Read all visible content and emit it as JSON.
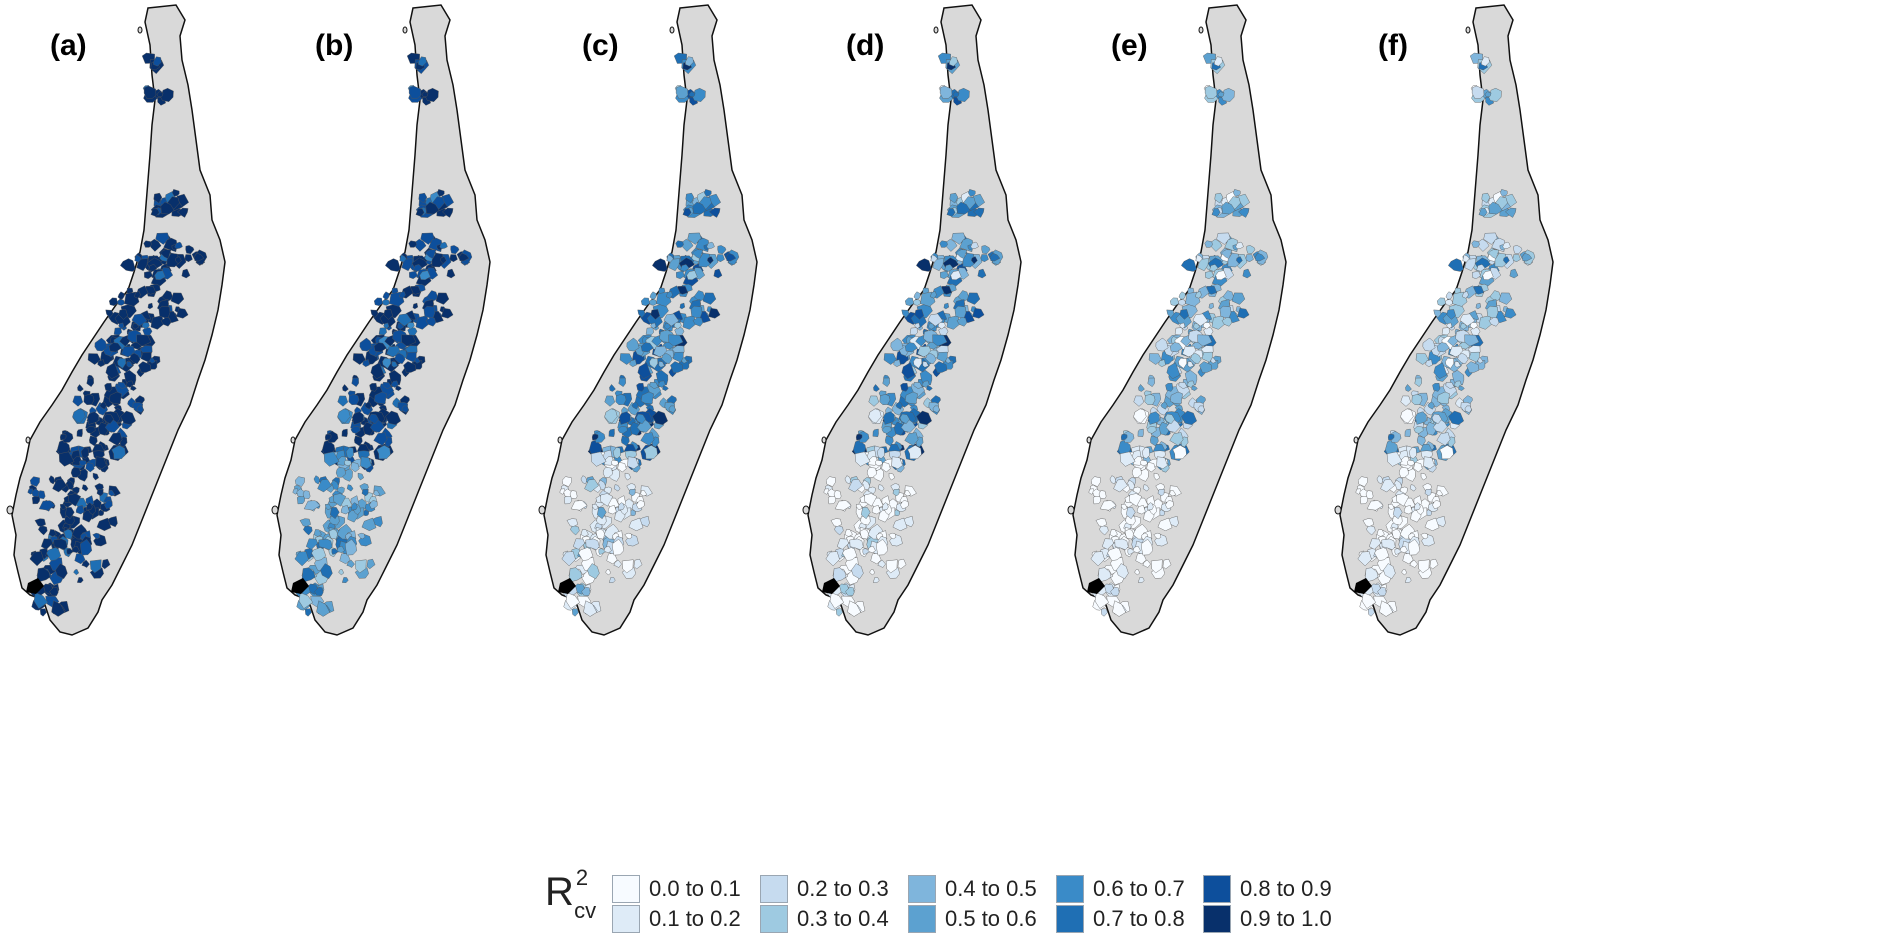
{
  "panels": [
    {
      "label": "(a)",
      "palette_weights": [
        0,
        0,
        0,
        0,
        0,
        0,
        0,
        0.05,
        0.25,
        0.7
      ],
      "south_weights": [
        0,
        0,
        0,
        0,
        0,
        0,
        0,
        0.05,
        0.25,
        0.7
      ]
    },
    {
      "label": "(b)",
      "palette_weights": [
        0,
        0,
        0,
        0,
        0,
        0,
        0.05,
        0.15,
        0.35,
        0.45
      ],
      "south_weights": [
        0,
        0,
        0,
        0.1,
        0.2,
        0.3,
        0.25,
        0.15,
        0,
        0
      ]
    },
    {
      "label": "(c)",
      "palette_weights": [
        0,
        0,
        0,
        0.05,
        0.1,
        0.2,
        0.3,
        0.2,
        0.1,
        0.05
      ],
      "south_weights": [
        0.3,
        0.3,
        0.2,
        0.1,
        0.05,
        0.05,
        0,
        0,
        0,
        0
      ]
    },
    {
      "label": "(d)",
      "palette_weights": [
        0,
        0.05,
        0.05,
        0.1,
        0.15,
        0.2,
        0.2,
        0.15,
        0.07,
        0.03
      ],
      "south_weights": [
        0.5,
        0.3,
        0.1,
        0.1,
        0,
        0,
        0,
        0,
        0,
        0
      ]
    },
    {
      "label": "(e)",
      "palette_weights": [
        0.05,
        0.1,
        0.15,
        0.2,
        0.2,
        0.15,
        0.1,
        0.05,
        0,
        0
      ],
      "south_weights": [
        0.6,
        0.3,
        0.1,
        0,
        0,
        0,
        0,
        0,
        0,
        0
      ]
    },
    {
      "label": "(f)",
      "palette_weights": [
        0.05,
        0.15,
        0.2,
        0.2,
        0.2,
        0.1,
        0.07,
        0.03,
        0,
        0
      ],
      "south_weights": [
        0.6,
        0.3,
        0.1,
        0,
        0,
        0,
        0,
        0,
        0,
        0
      ]
    }
  ],
  "legend": {
    "title_main": "R",
    "title_sup": "2",
    "title_sub": "cv",
    "classes": [
      {
        "label": "0.0 to 0.1",
        "color": "#f7fbff"
      },
      {
        "label": "0.1 to 0.2",
        "color": "#deebf7"
      },
      {
        "label": "0.2 to 0.3",
        "color": "#c6dbef"
      },
      {
        "label": "0.3 to 0.4",
        "color": "#9ecae1"
      },
      {
        "label": "0.4 to 0.5",
        "color": "#7fb5dc"
      },
      {
        "label": "0.5 to 0.6",
        "color": "#5ca1d0"
      },
      {
        "label": "0.6 to 0.7",
        "color": "#3a8bc8"
      },
      {
        "label": "0.7 to 0.8",
        "color": "#1f6fb4"
      },
      {
        "label": "0.8 to 0.9",
        "color": "#0d4f9c"
      },
      {
        "label": "0.9 to 1.0",
        "color": "#08306b"
      }
    ]
  },
  "colors": {
    "land": "#d9d9d9",
    "outline": "#111111",
    "polygon_stroke": "#555555"
  }
}
